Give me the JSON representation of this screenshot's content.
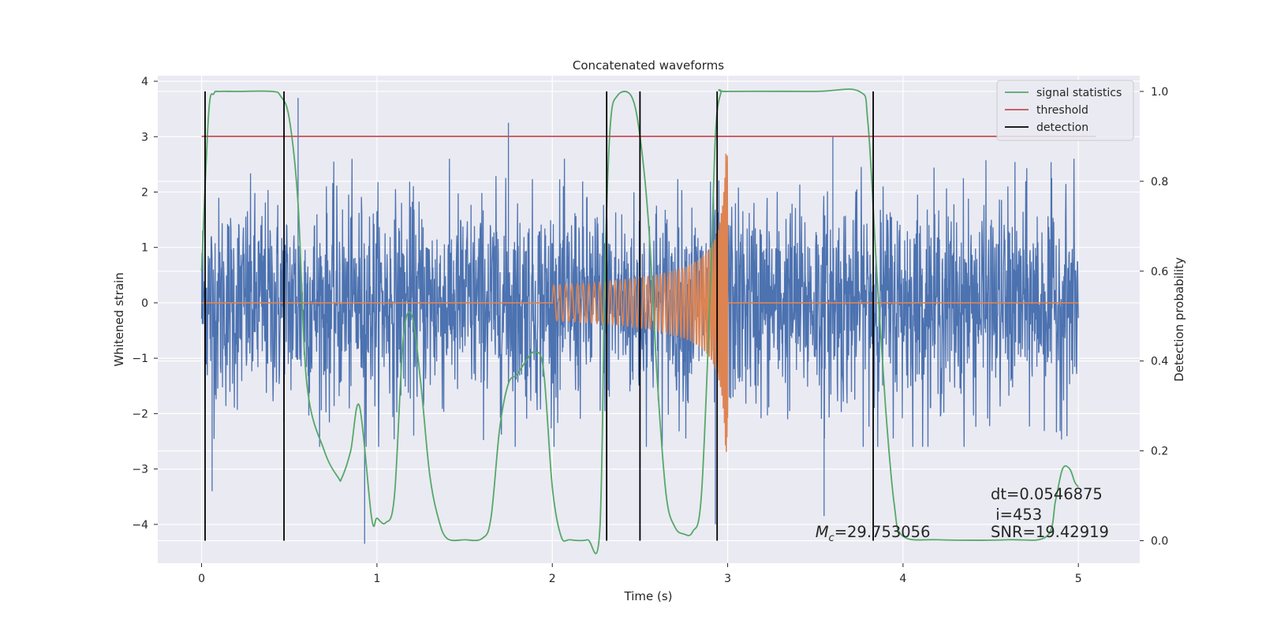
{
  "chart_data": {
    "type": "line",
    "title": "Concatenated waveforms",
    "xlabel": "Time (s)",
    "ylabel": "Whitened strain",
    "y2label": "Detection probability",
    "xlim": [
      -0.25,
      5.35
    ],
    "ylim": [
      -4.7,
      4.1
    ],
    "y2lim": [
      -0.05,
      1.035
    ],
    "xticks": [
      0,
      1,
      2,
      3,
      4,
      5
    ],
    "yticks": [
      -4,
      -3,
      -2,
      -1,
      0,
      1,
      2,
      3,
      4
    ],
    "y2ticks": [
      0.0,
      0.2,
      0.4,
      0.6,
      0.8,
      1.0
    ],
    "grid": true,
    "legend_position": "top-right",
    "series": [
      {
        "name": "",
        "axis": "left",
        "kind": "noise",
        "color": "#4c72b0",
        "x_range": [
          0,
          5
        ],
        "typical_amplitude": 1.3,
        "extremes": [
          [
            0.06,
            -3.4
          ],
          [
            0.55,
            3.7
          ],
          [
            0.93,
            -4.35
          ],
          [
            1.75,
            3.25
          ],
          [
            2.93,
            -4.0
          ],
          [
            3.55,
            -3.85
          ],
          [
            3.6,
            3.0
          ]
        ]
      },
      {
        "name": "",
        "axis": "left",
        "kind": "chirp",
        "color": "#dd8452",
        "x_range": [
          0,
          5
        ],
        "chirp_start": 2.0,
        "chirp_end": 3.0,
        "peak_amplitude": 2.7
      },
      {
        "name": "signal statistics",
        "axis": "right",
        "color": "#55a868",
        "x": [
          0.0,
          0.04,
          0.07,
          0.1,
          0.2,
          0.4,
          0.45,
          0.5,
          0.55,
          0.6,
          0.7,
          0.78,
          0.8,
          0.85,
          0.9,
          0.97,
          1.0,
          1.05,
          1.1,
          1.15,
          1.2,
          1.25,
          1.3,
          1.35,
          1.4,
          1.5,
          1.6,
          1.65,
          1.7,
          1.75,
          1.8,
          1.85,
          1.9,
          1.95,
          2.0,
          2.05,
          2.1,
          2.2,
          2.27,
          2.3,
          2.33,
          2.37,
          2.45,
          2.5,
          2.55,
          2.6,
          2.65,
          2.7,
          2.75,
          2.8,
          2.85,
          2.9,
          2.93,
          2.96,
          3.0,
          3.5,
          3.75,
          3.8,
          3.85,
          3.9,
          3.95,
          4.0,
          4.2,
          4.6,
          4.82,
          4.87,
          4.91,
          4.95,
          4.98,
          5.0
        ],
        "values": [
          0.6,
          0.95,
          0.995,
          1.0,
          1.0,
          1.0,
          0.99,
          0.94,
          0.75,
          0.35,
          0.2,
          0.14,
          0.14,
          0.2,
          0.3,
          0.05,
          0.05,
          0.04,
          0.1,
          0.45,
          0.5,
          0.35,
          0.15,
          0.05,
          0.005,
          0.002,
          0.005,
          0.05,
          0.25,
          0.35,
          0.37,
          0.4,
          0.42,
          0.38,
          0.12,
          0.01,
          0.002,
          0.002,
          0.02,
          0.6,
          0.92,
          0.99,
          0.99,
          0.9,
          0.7,
          0.35,
          0.1,
          0.03,
          0.015,
          0.02,
          0.1,
          0.55,
          0.9,
          0.995,
          1.0,
          1.0,
          1.0,
          0.93,
          0.6,
          0.3,
          0.08,
          0.01,
          0.002,
          0.002,
          0.01,
          0.09,
          0.16,
          0.16,
          0.13,
          0.12
        ]
      },
      {
        "name": "threshold",
        "axis": "right",
        "color": "#c44e52",
        "x": [
          0.0,
          5.1
        ],
        "values": [
          0.9,
          0.9
        ]
      },
      {
        "name": "detection",
        "axis": "right",
        "kind": "vlines",
        "color": "#000000",
        "x": [
          0.02,
          0.47,
          2.31,
          2.5,
          2.94,
          3.83
        ],
        "ymin": 0.0,
        "ymax": 1.0
      }
    ],
    "annotations": [
      {
        "text": "dt=0.0546875",
        "x": 4.5,
        "y": -3.55
      },
      {
        "text": " i=453",
        "x": 4.5,
        "y": -3.92
      },
      {
        "text": "SNR=19.42919",
        "x": 4.5,
        "y": -4.23
      },
      {
        "prefix": "M",
        "subscript": "c",
        "text": "=29.753056",
        "x": 3.5,
        "y": -4.23
      }
    ]
  }
}
